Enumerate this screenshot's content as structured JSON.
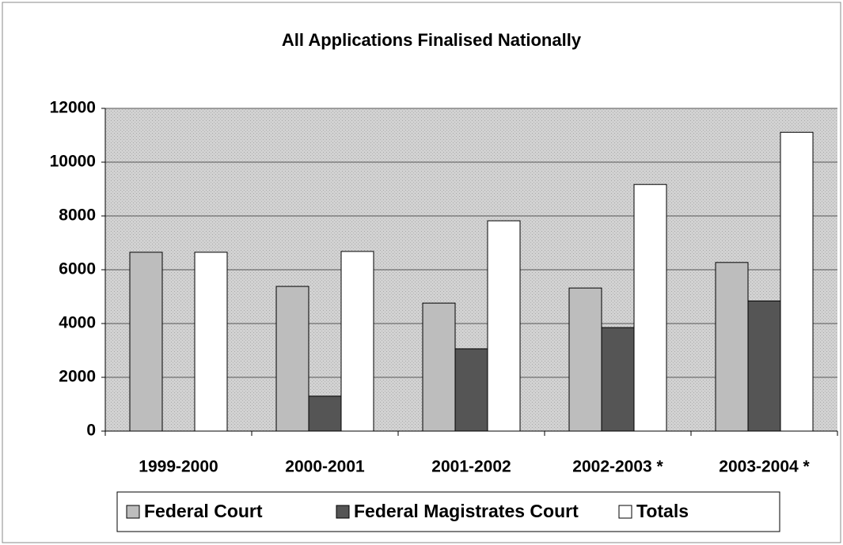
{
  "chart_data": {
    "type": "bar",
    "title": "All Applications Finalised Nationally",
    "categories": [
      "1999-2000",
      "2000-2001",
      "2001-2002",
      "2002-2003 *",
      "2003-2004 *"
    ],
    "series": [
      {
        "name": "Federal Court",
        "color": "#bdbdbd",
        "values": [
          6650,
          5380,
          4760,
          5320,
          6270
        ]
      },
      {
        "name": "Federal Magistrates Court",
        "color": "#555555",
        "values": [
          0,
          1300,
          3060,
          3850,
          4840
        ]
      },
      {
        "name": "Totals",
        "color": "#ffffff",
        "values": [
          6650,
          6680,
          7820,
          9170,
          11110
        ]
      }
    ],
    "ylim": [
      0,
      12000
    ],
    "yticks": [
      0,
      2000,
      4000,
      6000,
      8000,
      10000,
      12000
    ],
    "grid": true,
    "legend": "bottom"
  }
}
